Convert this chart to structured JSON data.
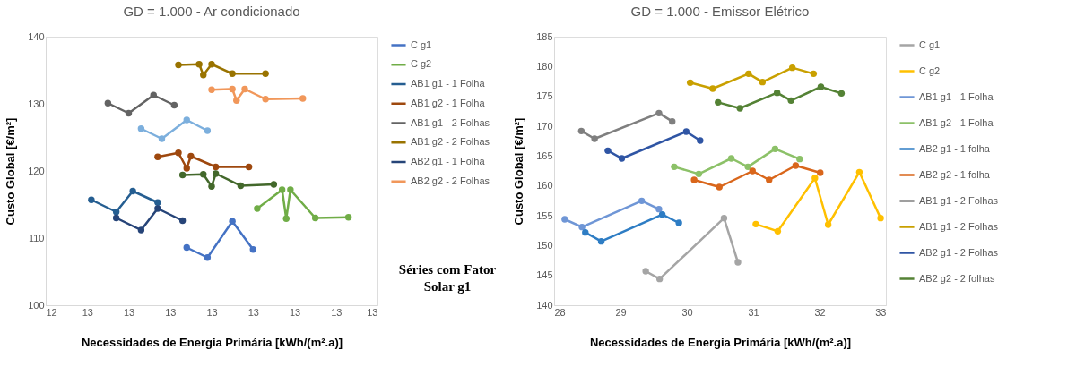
{
  "chart_data": [
    {
      "type": "line",
      "title": "GD = 1.000 - Ar condicionado",
      "xlabel": "Necessidades de Energia Primária [kWh/(m².a)]",
      "ylabel": "Custo Global [€/m²]",
      "marker": "circle",
      "line_style": "solid",
      "grid": false,
      "legend": "right",
      "xlim": [
        12.4,
        13.2
      ],
      "ylim": [
        100,
        140
      ],
      "xticks": [
        {
          "value": 12.4,
          "label": "12"
        },
        {
          "value": 12.5,
          "label": "13"
        },
        {
          "value": 12.6,
          "label": "13"
        },
        {
          "value": 12.7,
          "label": "13"
        },
        {
          "value": 12.8,
          "label": "13"
        },
        {
          "value": 12.9,
          "label": "13"
        },
        {
          "value": 13.0,
          "label": "13"
        },
        {
          "value": 13.1,
          "label": "13"
        },
        {
          "value": 13.2,
          "label": "13"
        }
      ],
      "yticks": [
        100,
        110,
        120,
        130,
        140
      ],
      "annotations": [
        "Séries com Fator Solar g1"
      ],
      "series": [
        {
          "name": "C g1",
          "color": "#4472c4",
          "x": [
            12.74,
            12.79,
            12.85,
            12.9
          ],
          "values": [
            108.6,
            107.1,
            112.5,
            108.3
          ]
        },
        {
          "name": "C g2",
          "color": "#70ad47",
          "x": [
            12.91,
            12.97,
            12.98,
            12.99,
            13.05,
            13.13
          ],
          "values": [
            114.4,
            117.2,
            112.9,
            117.2,
            113.0,
            113.1
          ]
        },
        {
          "name": "AB1 g1 - 1 Folha",
          "color": "#255e91",
          "x": [
            12.51,
            12.57,
            12.61,
            12.67
          ],
          "values": [
            115.7,
            113.9,
            117.0,
            115.3
          ]
        },
        {
          "name": "AB1 g2 - 1 Folha",
          "color": "#9e480e",
          "x": [
            12.67,
            12.72,
            12.74,
            12.75,
            12.81,
            12.89
          ],
          "values": [
            122.1,
            122.7,
            120.4,
            122.2,
            120.6,
            120.6
          ]
        },
        {
          "name": "AB1 g1 - 2 Folhas",
          "color": "#636363",
          "x": [
            12.55,
            12.6,
            12.66,
            12.71
          ],
          "values": [
            130.1,
            128.6,
            131.3,
            129.8
          ]
        },
        {
          "name": "AB1 g2 - 2 Folhas",
          "color": "#997300",
          "x": [
            12.72,
            12.77,
            12.78,
            12.8,
            12.85,
            12.93
          ],
          "values": [
            135.8,
            135.9,
            134.3,
            135.9,
            134.5,
            134.5
          ]
        },
        {
          "name": "AB2 g1 - 1 Folha",
          "color": "#264478",
          "x": [
            12.57,
            12.63,
            12.67,
            12.73
          ],
          "values": [
            113.0,
            111.2,
            114.4,
            112.6
          ]
        },
        {
          "color": "#7cafdd",
          "x": [
            12.63,
            12.68,
            12.74,
            12.79
          ],
          "values": [
            126.3,
            124.8,
            127.6,
            126.0
          ]
        },
        {
          "color": "#43682b",
          "x": [
            12.73,
            12.78,
            12.8,
            12.81,
            12.87,
            12.95
          ],
          "values": [
            119.4,
            119.5,
            117.7,
            119.6,
            117.8,
            118.0
          ]
        },
        {
          "name": "AB2 g2 - 2 Folhas",
          "color": "#f1975a",
          "x": [
            12.8,
            12.85,
            12.86,
            12.88,
            12.93,
            13.02
          ],
          "values": [
            132.1,
            132.2,
            130.5,
            132.2,
            130.7,
            130.8
          ]
        }
      ]
    },
    {
      "type": "line",
      "title": "GD = 1.000 - Emissor Elétrico",
      "xlabel": "Necessidades de Energia Primária [kWh/(m².a)]",
      "ylabel": "Custo Global [€/m²]",
      "marker": "circle",
      "line_style": "solid",
      "grid": false,
      "legend": "right",
      "xlim": [
        28,
        33
      ],
      "ylim": [
        140,
        185
      ],
      "xticks": [
        28,
        29,
        30,
        31,
        32,
        33
      ],
      "yticks": [
        140,
        145,
        150,
        155,
        160,
        165,
        170,
        175,
        180,
        185
      ],
      "series": [
        {
          "name": "C g1",
          "color": "#a5a5a5",
          "x": [
            29.38,
            29.59,
            30.56,
            30.77
          ],
          "values": [
            145.7,
            144.4,
            154.6,
            147.2
          ]
        },
        {
          "name": "C g2",
          "color": "#ffc000",
          "x": [
            31.04,
            31.37,
            31.93,
            32.13,
            32.6,
            32.92
          ],
          "values": [
            153.6,
            152.4,
            161.3,
            153.5,
            162.3,
            154.6
          ]
        },
        {
          "name": "AB1 g1 - 1 Folha",
          "color": "#6f96d6",
          "x": [
            28.16,
            28.42,
            29.32,
            29.58
          ],
          "values": [
            154.4,
            153.1,
            157.5,
            156.1
          ]
        },
        {
          "name": "AB1 g2 - 1 Folha",
          "color": "#8cc168",
          "x": [
            29.81,
            30.18,
            30.67,
            30.92,
            31.33,
            31.7
          ],
          "values": [
            163.2,
            162.0,
            164.6,
            163.2,
            166.2,
            164.5
          ]
        },
        {
          "name": "AB2 g1 - 1 folha",
          "color": "#2e7dc4",
          "x": [
            28.47,
            28.71,
            29.63,
            29.88
          ],
          "values": [
            152.2,
            150.7,
            155.2,
            153.8
          ]
        },
        {
          "name": "AB2 g2 - 1 folha",
          "color": "#d9661b",
          "x": [
            30.11,
            30.49,
            30.99,
            31.24,
            31.64,
            32.01
          ],
          "values": [
            161.0,
            159.8,
            162.5,
            161.0,
            163.4,
            162.2
          ]
        },
        {
          "name": "AB1 g1 - 2 Folhas",
          "color": "#7f7f7f",
          "x": [
            28.41,
            28.61,
            29.58,
            29.78
          ],
          "values": [
            169.2,
            167.9,
            172.2,
            170.8
          ]
        },
        {
          "name": "AB1 g1 - 2 Folhas",
          "color": "#c9a000",
          "x": [
            30.05,
            30.39,
            30.93,
            31.14,
            31.59,
            31.91
          ],
          "values": [
            177.3,
            176.3,
            178.8,
            177.4,
            179.8,
            178.8
          ]
        },
        {
          "name": "AB2 g1 - 2 Folhas",
          "color": "#2f55a4",
          "x": [
            28.81,
            29.02,
            29.99,
            30.2
          ],
          "values": [
            165.9,
            164.6,
            169.1,
            167.6
          ]
        },
        {
          "name": "AB2 g2 - 2 folhas",
          "color": "#548235",
          "x": [
            30.47,
            30.8,
            31.36,
            31.57,
            32.02,
            32.33
          ],
          "values": [
            174.0,
            173.0,
            175.6,
            174.3,
            176.6,
            175.5
          ]
        }
      ]
    }
  ]
}
